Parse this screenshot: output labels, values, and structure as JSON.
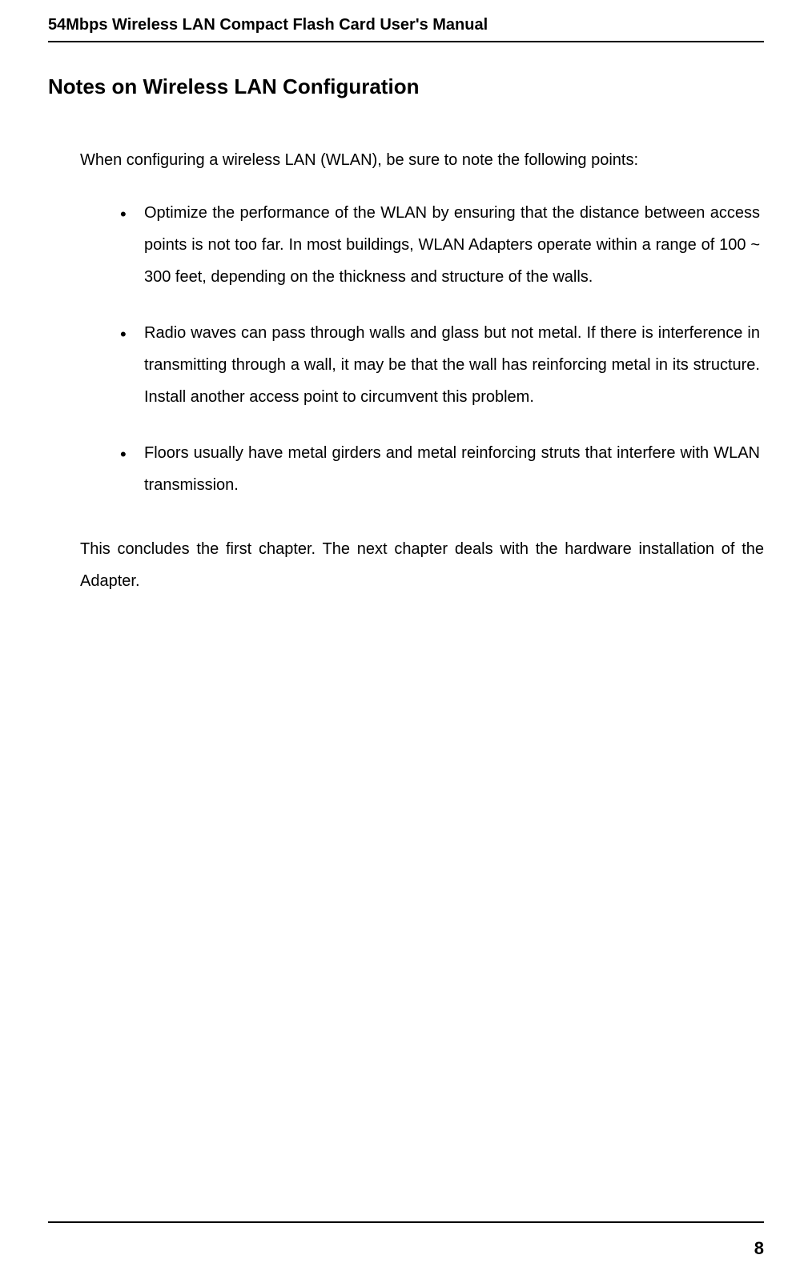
{
  "header": {
    "title": "54Mbps Wireless LAN Compact Flash Card User's Manual"
  },
  "content": {
    "heading": "Notes on Wireless LAN Configuration",
    "intro": "When configuring a wireless LAN (WLAN), be sure to note the following points:",
    "bullets": [
      "Optimize the performance of the WLAN by ensuring that the distance between access points is not too far. In most buildings, WLAN Adapters operate within a range of 100 ~ 300 feet, depending on the thickness and structure of the walls.",
      "Radio waves can pass through walls and glass but not metal. If there is interference in transmitting through a wall, it may be that the wall has reinforcing metal in its structure. Install another access point to circumvent this problem.",
      "Floors usually have metal girders and metal reinforcing struts that interfere with WLAN transmission."
    ],
    "conclusion": "This concludes the first chapter.  The next chapter deals with the hardware installation of the Adapter."
  },
  "footer": {
    "page_number": "8"
  },
  "styling": {
    "background_color": "#ffffff",
    "text_color": "#000000",
    "divider_color": "#000000",
    "header_font_size": 20,
    "heading_font_size": 26,
    "body_font_size": 20,
    "page_number_font_size": 22
  }
}
